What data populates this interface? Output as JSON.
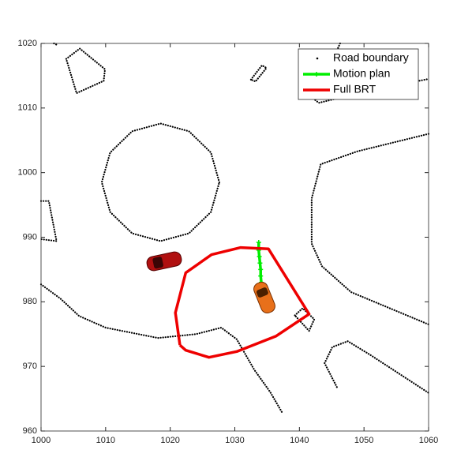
{
  "chart_data": {
    "type": "line",
    "xlim": [
      1000,
      1060
    ],
    "ylim": [
      960,
      1020
    ],
    "xticks": [
      1000,
      1010,
      1020,
      1030,
      1040,
      1050,
      1060
    ],
    "yticks": [
      960,
      970,
      980,
      990,
      1000,
      1010,
      1020
    ],
    "legend_location": "northeast",
    "series": [
      {
        "name": "Road boundary",
        "color": "#000000",
        "line_style": "dotted",
        "marker": "none",
        "x": [
          1003.9,
          1006.0,
          1009.9,
          1009.7,
          1005.5,
          1003.9,
          null,
          1002.0,
          1002.4,
          null,
          1027.6,
          1026.3,
          1022.9,
          1018.5,
          1014.1,
          1010.7,
          1009.4,
          1010.7,
          1014.1,
          1018.5,
          1022.9,
          1026.3,
          1027.6,
          null,
          1032.5,
          1034.2,
          1034.9,
          1033.2,
          1032.5,
          null,
          1046.3,
          1044.5,
          1041.5,
          1043.0,
          1050.0,
          1060.0,
          null,
          1060.0,
          1049.0,
          1043.3,
          1041.9,
          1041.9,
          1043.5,
          1048.0,
          1060.0,
          null,
          1000.0,
          1001.2,
          1002.4,
          1000.0,
          null,
          1000.0,
          1003.0,
          1005.9,
          1010.0,
          1018.1,
          1024.0,
          1027.9,
          1030.3,
          1033.0,
          1035.5,
          1037.3,
          null,
          1039.3,
          1040.5,
          1042.3,
          1041.5,
          1039.3,
          null,
          1045.8,
          1043.9,
          1045.1,
          1047.5,
          1051.1,
          1060.0
        ],
        "y": [
          1017.6,
          1019.2,
          1016.0,
          1014.2,
          1012.3,
          1017.6,
          null,
          1020.0,
          1019.8,
          null,
          998.5,
          1003.1,
          1006.4,
          1007.6,
          1006.4,
          1003.1,
          998.5,
          993.9,
          990.6,
          989.4,
          990.6,
          993.9,
          998.5,
          null,
          1014.4,
          1016.6,
          1016.2,
          1014.1,
          1014.4,
          null,
          1020.0,
          1016.0,
          1012.0,
          1010.8,
          1012.5,
          1014.5,
          null,
          1006.0,
          1003.3,
          1001.3,
          996.0,
          989.0,
          985.5,
          981.5,
          976.5,
          null,
          995.6,
          995.6,
          989.4,
          989.7,
          null,
          982.7,
          980.5,
          977.8,
          976.0,
          974.4,
          975.0,
          976.0,
          974.2,
          969.5,
          966.0,
          962.9,
          null,
          977.9,
          979.0,
          977.3,
          975.5,
          977.9,
          null,
          966.8,
          970.5,
          973.0,
          973.9,
          971.7,
          965.9
        ]
      },
      {
        "name": "Motion plan",
        "color": "#00ee00",
        "line_style": "solid",
        "marker": "plus",
        "x": [
          1033.7,
          1033.7,
          1033.8,
          1033.9,
          1034.0,
          1034.0,
          1034.1,
          1034.2
        ],
        "y": [
          989.2,
          988.0,
          987.0,
          986.0,
          985.0,
          984.0,
          983.0,
          981.7
        ]
      },
      {
        "name": "Full BRT",
        "color": "#ee0000",
        "line_style": "solid",
        "marker": "none",
        "x": [
          1021.5,
          1020.8,
          1022.4,
          1026.4,
          1030.9,
          1035.2,
          1041.5,
          1036.4,
          1030.3,
          1026.0,
          1022.4,
          1021.5
        ],
        "y": [
          973.3,
          978.3,
          984.5,
          987.3,
          988.4,
          988.2,
          978.1,
          974.7,
          972.3,
          971.4,
          972.5,
          973.3
        ]
      }
    ]
  }
}
